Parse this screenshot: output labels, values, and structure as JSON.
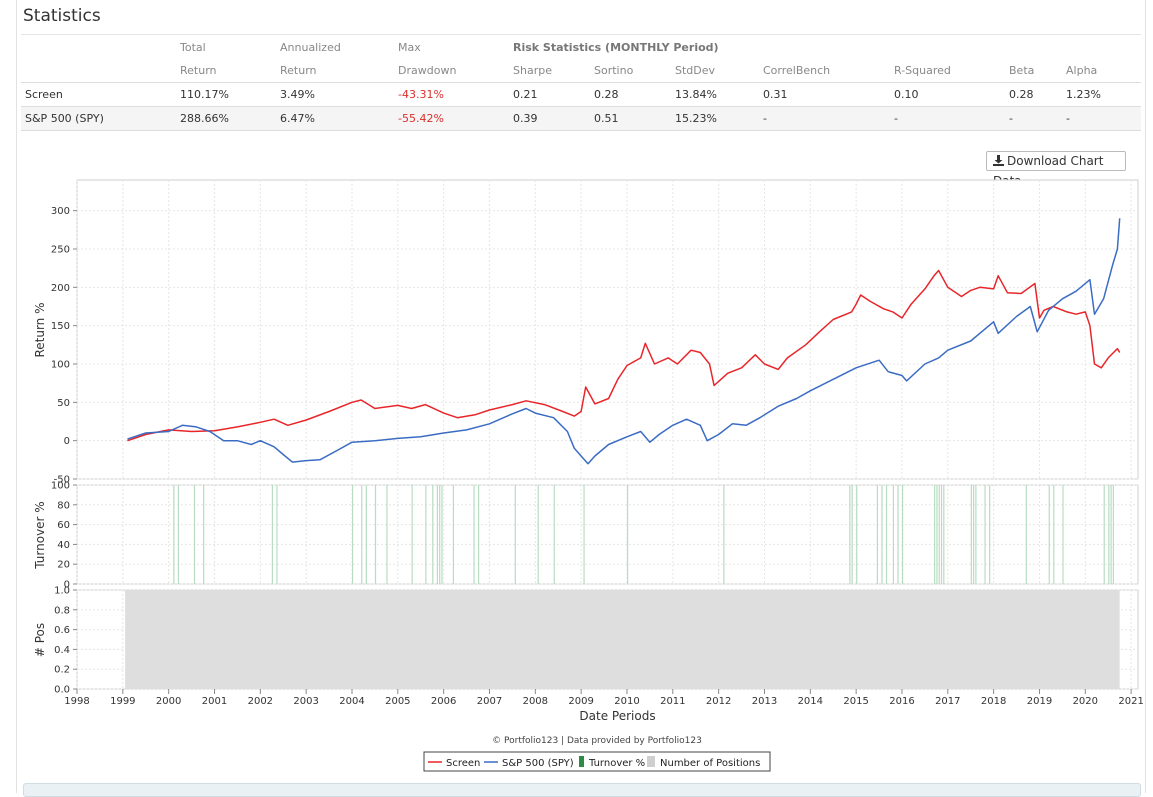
{
  "title": "Statistics",
  "download_label": "Download Chart Data",
  "stats": {
    "group_header": "Risk Statistics (MONTHLY Period)",
    "header_top": [
      "Total",
      "Annualized",
      "Max"
    ],
    "header_bottom": [
      "Return",
      "Return",
      "Drawdown",
      "Sharpe",
      "Sortino",
      "StdDev",
      "CorrelBench",
      "R-Squared",
      "Beta",
      "Alpha"
    ],
    "rows": [
      {
        "name": "Screen",
        "values": [
          "110.17%",
          "3.49%",
          "-43.31%",
          "0.21",
          "0.28",
          "13.84%",
          "0.31",
          "0.10",
          "0.28",
          "1.23%"
        ]
      },
      {
        "name": "S&P 500 (SPY)",
        "values": [
          "288.66%",
          "6.47%",
          "-55.42%",
          "0.39",
          "0.51",
          "15.23%",
          "-",
          "-",
          "-",
          "-"
        ]
      }
    ]
  },
  "chart_data": [
    {
      "type": "line",
      "ylabel": "Return %",
      "ylim": [
        -50,
        340
      ],
      "yticks": [
        "-50",
        "0",
        "50",
        "100",
        "150",
        "200",
        "250",
        "300"
      ],
      "series": [
        {
          "name": "Screen",
          "color": "#e8262a",
          "points": [
            [
              1999.1,
              0
            ],
            [
              1999.5,
              8
            ],
            [
              2000.0,
              14
            ],
            [
              2000.5,
              12
            ],
            [
              2001.0,
              13
            ],
            [
              2001.5,
              18
            ],
            [
              2002.0,
              24
            ],
            [
              2002.3,
              28
            ],
            [
              2002.6,
              20
            ],
            [
              2003.0,
              27
            ],
            [
              2003.5,
              38
            ],
            [
              2004.0,
              50
            ],
            [
              2004.2,
              53
            ],
            [
              2004.5,
              42
            ],
            [
              2005.0,
              46
            ],
            [
              2005.3,
              42
            ],
            [
              2005.6,
              47
            ],
            [
              2006.0,
              36
            ],
            [
              2006.3,
              30
            ],
            [
              2006.7,
              34
            ],
            [
              2007.0,
              40
            ],
            [
              2007.5,
              47
            ],
            [
              2007.8,
              52
            ],
            [
              2008.2,
              47
            ],
            [
              2008.6,
              38
            ],
            [
              2008.85,
              32
            ],
            [
              2009.0,
              38
            ],
            [
              2009.1,
              70
            ],
            [
              2009.3,
              48
            ],
            [
              2009.6,
              55
            ],
            [
              2009.8,
              80
            ],
            [
              2010.0,
              98
            ],
            [
              2010.3,
              108
            ],
            [
              2010.4,
              127
            ],
            [
              2010.6,
              100
            ],
            [
              2010.9,
              108
            ],
            [
              2011.1,
              100
            ],
            [
              2011.4,
              118
            ],
            [
              2011.6,
              115
            ],
            [
              2011.8,
              100
            ],
            [
              2011.9,
              72
            ],
            [
              2012.2,
              88
            ],
            [
              2012.5,
              95
            ],
            [
              2012.8,
              112
            ],
            [
              2013.0,
              100
            ],
            [
              2013.3,
              93
            ],
            [
              2013.5,
              108
            ],
            [
              2013.9,
              125
            ],
            [
              2014.2,
              142
            ],
            [
              2014.5,
              158
            ],
            [
              2014.9,
              168
            ],
            [
              2015.0,
              178
            ],
            [
              2015.1,
              190
            ],
            [
              2015.3,
              182
            ],
            [
              2015.6,
              172
            ],
            [
              2015.8,
              168
            ],
            [
              2016.0,
              160
            ],
            [
              2016.2,
              178
            ],
            [
              2016.5,
              198
            ],
            [
              2016.7,
              215
            ],
            [
              2016.8,
              222
            ],
            [
              2017.0,
              200
            ],
            [
              2017.3,
              188
            ],
            [
              2017.5,
              196
            ],
            [
              2017.7,
              200
            ],
            [
              2018.0,
              198
            ],
            [
              2018.1,
              215
            ],
            [
              2018.3,
              193
            ],
            [
              2018.6,
              192
            ],
            [
              2018.9,
              205
            ],
            [
              2019.0,
              160
            ],
            [
              2019.1,
              170
            ],
            [
              2019.3,
              175
            ],
            [
              2019.6,
              168
            ],
            [
              2019.8,
              165
            ],
            [
              2020.0,
              168
            ],
            [
              2020.1,
              150
            ],
            [
              2020.2,
              100
            ],
            [
              2020.35,
              95
            ],
            [
              2020.5,
              108
            ],
            [
              2020.7,
              120
            ],
            [
              2020.75,
              115
            ]
          ]
        },
        {
          "name": "S&P 500 (SPY)",
          "color": "#3b6cc4",
          "points": [
            [
              1999.1,
              2
            ],
            [
              1999.5,
              10
            ],
            [
              2000.0,
              12
            ],
            [
              2000.3,
              20
            ],
            [
              2000.6,
              18
            ],
            [
              2000.9,
              12
            ],
            [
              2001.2,
              0
            ],
            [
              2001.5,
              0
            ],
            [
              2001.8,
              -5
            ],
            [
              2002.0,
              0
            ],
            [
              2002.3,
              -8
            ],
            [
              2002.5,
              -18
            ],
            [
              2002.7,
              -28
            ],
            [
              2003.0,
              -26
            ],
            [
              2003.3,
              -25
            ],
            [
              2003.7,
              -12
            ],
            [
              2004.0,
              -2
            ],
            [
              2004.5,
              0
            ],
            [
              2005.0,
              3
            ],
            [
              2005.5,
              5
            ],
            [
              2006.0,
              10
            ],
            [
              2006.5,
              14
            ],
            [
              2007.0,
              22
            ],
            [
              2007.5,
              35
            ],
            [
              2007.8,
              42
            ],
            [
              2008.0,
              36
            ],
            [
              2008.4,
              30
            ],
            [
              2008.7,
              12
            ],
            [
              2008.85,
              -10
            ],
            [
              2009.0,
              -20
            ],
            [
              2009.15,
              -30
            ],
            [
              2009.3,
              -20
            ],
            [
              2009.6,
              -5
            ],
            [
              2010.0,
              5
            ],
            [
              2010.3,
              12
            ],
            [
              2010.5,
              -2
            ],
            [
              2010.7,
              8
            ],
            [
              2011.0,
              20
            ],
            [
              2011.3,
              28
            ],
            [
              2011.6,
              20
            ],
            [
              2011.75,
              0
            ],
            [
              2012.0,
              8
            ],
            [
              2012.3,
              22
            ],
            [
              2012.6,
              20
            ],
            [
              2012.9,
              30
            ],
            [
              2013.3,
              45
            ],
            [
              2013.7,
              55
            ],
            [
              2014.0,
              65
            ],
            [
              2014.5,
              80
            ],
            [
              2015.0,
              95
            ],
            [
              2015.5,
              105
            ],
            [
              2015.7,
              90
            ],
            [
              2016.0,
              85
            ],
            [
              2016.1,
              78
            ],
            [
              2016.5,
              100
            ],
            [
              2016.8,
              108
            ],
            [
              2017.0,
              118
            ],
            [
              2017.5,
              130
            ],
            [
              2018.0,
              155
            ],
            [
              2018.1,
              140
            ],
            [
              2018.5,
              162
            ],
            [
              2018.8,
              175
            ],
            [
              2018.95,
              142
            ],
            [
              2019.2,
              170
            ],
            [
              2019.5,
              185
            ],
            [
              2019.8,
              195
            ],
            [
              2020.1,
              210
            ],
            [
              2020.2,
              165
            ],
            [
              2020.4,
              185
            ],
            [
              2020.6,
              230
            ],
            [
              2020.7,
              250
            ],
            [
              2020.75,
              290
            ]
          ]
        }
      ]
    },
    {
      "type": "bar",
      "ylabel": "Turnover %",
      "ylim": [
        0,
        100
      ],
      "yticks": [
        "0",
        "20",
        "40",
        "60",
        "80",
        "100"
      ],
      "series": [
        {
          "name": "Turnover %",
          "color": "#b9dcc2",
          "bar_x": [
            2000.1,
            2000.2,
            2000.55,
            2000.75,
            2002.25,
            2002.35,
            2004.0,
            2004.2,
            2004.3,
            2004.5,
            2004.75,
            2005.3,
            2005.6,
            2005.75,
            2005.85,
            2005.9,
            2005.95,
            2006.2,
            2006.65,
            2006.75,
            2007.55,
            2008.05,
            2008.4,
            2009.05,
            2010.0,
            2012.1,
            2014.85,
            2014.9,
            2015.0,
            2015.45,
            2015.55,
            2015.65,
            2015.8,
            2015.9,
            2016.0,
            2016.7,
            2016.75,
            2016.8,
            2016.85,
            2016.9,
            2017.5,
            2017.55,
            2017.6,
            2017.8,
            2017.9,
            2018.7,
            2019.2,
            2019.3,
            2019.5,
            2020.4,
            2020.5,
            2020.55,
            2020.6
          ],
          "bar_value": 100
        }
      ]
    },
    {
      "type": "area",
      "ylabel": "# Pos",
      "ylim": [
        0,
        1.0
      ],
      "yticks": [
        "0.0",
        "0.2",
        "0.4",
        "0.6",
        "0.8",
        "1.0"
      ],
      "xlabel": "Date Periods",
      "xticks": [
        "1998",
        "1999",
        "2000",
        "2001",
        "2002",
        "2003",
        "2004",
        "2005",
        "2006",
        "2007",
        "2008",
        "2009",
        "2010",
        "2011",
        "2012",
        "2013",
        "2014",
        "2015",
        "2016",
        "2017",
        "2018",
        "2019",
        "2020",
        "2021"
      ],
      "series": [
        {
          "name": "Number of Positions",
          "color": "#dedede",
          "x_range": [
            1999.05,
            2020.75
          ],
          "value": 1.0
        }
      ]
    }
  ],
  "credit": "© Portfolio123 | Data provided by Portfolio123",
  "legend": [
    {
      "label": "Screen",
      "color": "#e8262a",
      "kind": "line"
    },
    {
      "label": "S&P 500 (SPY)",
      "color": "#3b6cc4",
      "kind": "line"
    },
    {
      "label": "Turnover %",
      "color": "#2e8b45",
      "kind": "bar"
    },
    {
      "label": "Number of Positions",
      "color": "#cfcfcf",
      "kind": "box"
    }
  ]
}
